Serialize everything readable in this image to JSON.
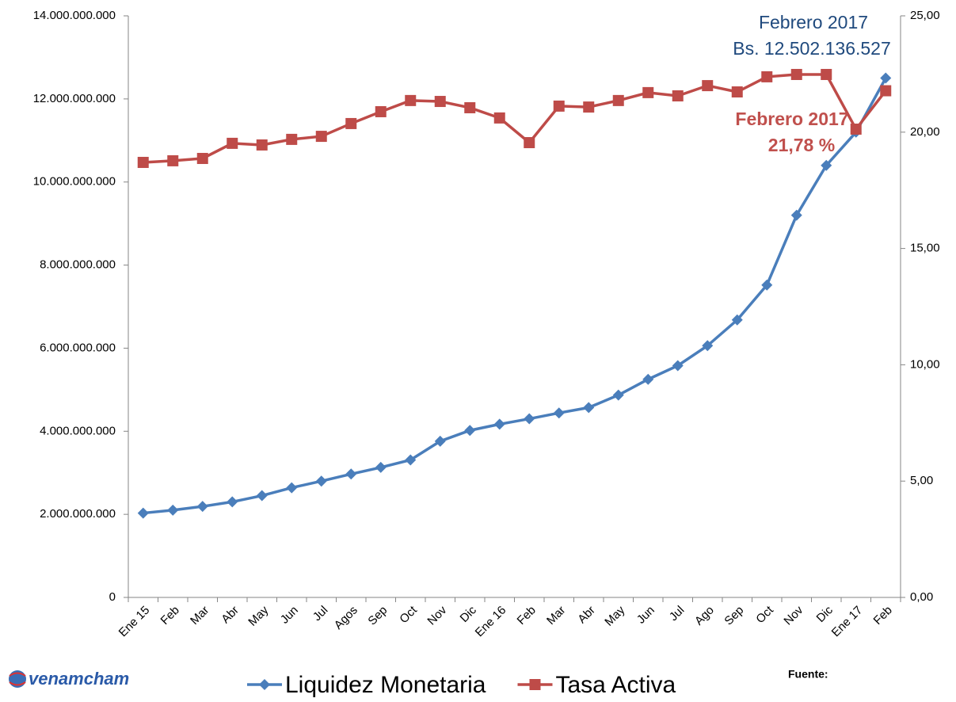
{
  "chart_data": {
    "type": "line",
    "categories": [
      "Ene 15",
      "Feb",
      "Mar",
      "Abr",
      "May",
      "Jun",
      "Jul",
      "Agos",
      "Sep",
      "Oct",
      "Nov",
      "Dic",
      "Ene 16",
      "Feb",
      "Mar",
      "Abr",
      "May",
      "Jun",
      "Jul",
      "Ago",
      "Sep",
      "Oct",
      "Nov",
      "Dic",
      "Ene 17",
      "Feb"
    ],
    "series": [
      {
        "name": "Liquidez Monetaria",
        "color": "#4a7ebb",
        "marker": "diamond",
        "values": [
          2030000000,
          2100000000,
          2190000000,
          2300000000,
          2450000000,
          2640000000,
          2800000000,
          2970000000,
          3130000000,
          3310000000,
          3760000000,
          4020000000,
          4170000000,
          4300000000,
          4440000000,
          4570000000,
          4870000000,
          5250000000,
          5580000000,
          6060000000,
          6680000000,
          7520000000,
          9200000000,
          10400000000,
          11200000000,
          12502136527
        ]
      },
      {
        "name": "Tasa Activa",
        "color": "#be4b48",
        "marker": "square",
        "axis": "y2",
        "values": [
          18.7,
          18.77,
          18.87,
          19.52,
          19.45,
          19.69,
          19.82,
          20.37,
          20.88,
          21.36,
          21.32,
          21.05,
          20.61,
          19.55,
          21.12,
          21.08,
          21.36,
          21.7,
          21.56,
          22.0,
          21.73,
          22.38,
          22.48,
          22.48,
          20.13,
          21.78
        ]
      }
    ],
    "ylim": [
      0,
      14000000000
    ],
    "yticks": [
      0,
      {
        "value": 2000000000,
        "label": "2.000.000.000"
      },
      {
        "value": 4000000000,
        "label": "4.000.000.000"
      },
      {
        "value": 6000000000,
        "label": "6.000.000.000"
      },
      {
        "value": 8000000000,
        "label": "8.000.000.000"
      },
      {
        "value": 10000000000,
        "label": "10.000.000.000"
      },
      {
        "value": 12000000000,
        "label": "12.000.000.000"
      },
      {
        "value": 14000000000,
        "label": "14.000.000.000"
      }
    ],
    "y2lim": [
      0,
      25
    ],
    "y2ticks": [
      {
        "value": 0,
        "label": "0,00"
      },
      {
        "value": 5,
        "label": "5,00"
      },
      {
        "value": 10,
        "label": "10,00"
      },
      {
        "value": 15,
        "label": "15,00"
      },
      {
        "value": 20,
        "label": "20,00"
      },
      {
        "value": 25,
        "label": "25,00"
      }
    ],
    "grid": false,
    "legend": "bottom",
    "annotations": [
      {
        "lines": [
          "Febrero 2017",
          "Bs. 12.502.136.527"
        ],
        "color": "#1f497d"
      },
      {
        "lines": [
          "Febrero 2017",
          "21,78 %"
        ],
        "color": "#c0504d"
      }
    ],
    "source": "Fuente:",
    "logo": "venamcham"
  }
}
